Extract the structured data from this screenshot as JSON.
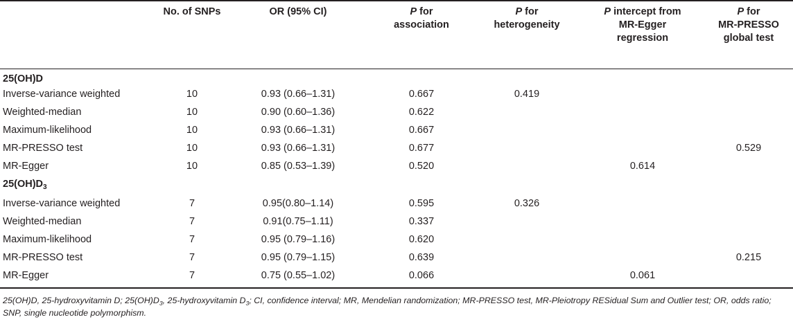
{
  "table": {
    "headers": {
      "snps": "No. of SNPs",
      "or": "OR (95% CI)",
      "assoc_p": "P",
      "assoc_rest": "for",
      "assoc_line2": "association",
      "het_p": "P",
      "het_rest": "for",
      "het_line2": "heterogeneity",
      "egger_p": "P",
      "egger_rest": "intercept from",
      "egger_line2": "MR-Egger",
      "egger_line3": "regression",
      "presso_p": "P",
      "presso_rest": "for",
      "presso_line2": "MR-PRESSO",
      "presso_line3": "global test"
    },
    "sections": [
      {
        "title_base": "25(OH)D",
        "title_sub": "",
        "rows": [
          {
            "method": "Inverse-variance weighted",
            "snps": "10",
            "or": "0.93 (0.66–1.31)",
            "p_assoc": "0.667",
            "p_het": "0.419",
            "p_egger": "",
            "p_presso": ""
          },
          {
            "method": "Weighted-median",
            "snps": "10",
            "or": "0.90 (0.60–1.36)",
            "p_assoc": "0.622",
            "p_het": "",
            "p_egger": "",
            "p_presso": ""
          },
          {
            "method": "Maximum-likelihood",
            "snps": "10",
            "or": "0.93 (0.66–1.31)",
            "p_assoc": "0.667",
            "p_het": "",
            "p_egger": "",
            "p_presso": ""
          },
          {
            "method": "MR-PRESSO test",
            "snps": "10",
            "or": "0.93 (0.66–1.31)",
            "p_assoc": "0.677",
            "p_het": "",
            "p_egger": "",
            "p_presso": "0.529"
          },
          {
            "method": "MR-Egger",
            "snps": "10",
            "or": "0.85 (0.53–1.39)",
            "p_assoc": "0.520",
            "p_het": "",
            "p_egger": "0.614",
            "p_presso": ""
          }
        ]
      },
      {
        "title_base": "25(OH)D",
        "title_sub": "3",
        "rows": [
          {
            "method": "Inverse-variance weighted",
            "snps": "7",
            "or": "0.95(0.80–1.14)",
            "p_assoc": "0.595",
            "p_het": "0.326",
            "p_egger": "",
            "p_presso": ""
          },
          {
            "method": "Weighted-median",
            "snps": "7",
            "or": "0.91(0.75–1.11)",
            "p_assoc": "0.337",
            "p_het": "",
            "p_egger": "",
            "p_presso": ""
          },
          {
            "method": "Maximum-likelihood",
            "snps": "7",
            "or": "0.95 (0.79–1.16)",
            "p_assoc": "0.620",
            "p_het": "",
            "p_egger": "",
            "p_presso": ""
          },
          {
            "method": "MR-PRESSO test",
            "snps": "7",
            "or": "0.95 (0.79–1.15)",
            "p_assoc": "0.639",
            "p_het": "",
            "p_egger": "",
            "p_presso": "0.215"
          },
          {
            "method": "MR-Egger",
            "snps": "7",
            "or": "0.75 (0.55–1.02)",
            "p_assoc": "0.066",
            "p_het": "",
            "p_egger": "0.061",
            "p_presso": ""
          }
        ]
      }
    ]
  },
  "footnote": {
    "part1": "25(OH)D, 25-hydroxyvitamin D; 25(OH)D",
    "sub1": "3",
    "part2": ", 25-hydroxyvitamin D",
    "sub2": "3",
    "part3": "; CI, confidence interval; MR, Mendelian randomization; MR-PRESSO test, MR-Pleiotropy RESidual Sum and Outlier test; OR, odds ratio; SNP, single nucleotide polymorphism."
  }
}
